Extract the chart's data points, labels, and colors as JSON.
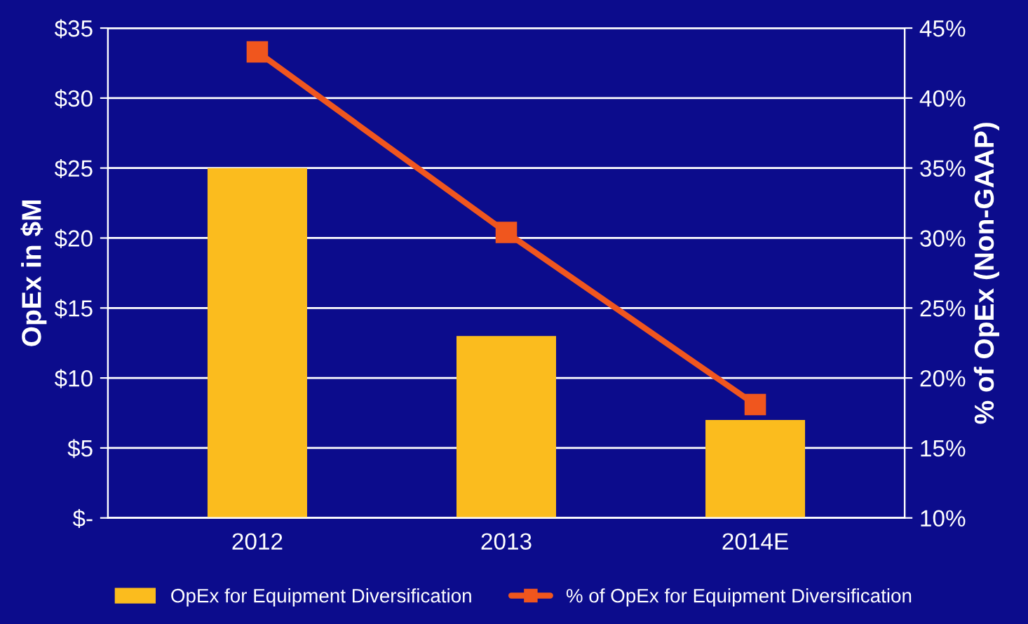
{
  "chart_data": {
    "type": "bar",
    "categories": [
      "2012",
      "2013",
      "2014E"
    ],
    "series": [
      {
        "name": "OpEx for Equipment Diversification",
        "color": "#fbbc1e",
        "values": [
          25,
          13,
          7
        ]
      },
      {
        "name": "% of OpEx for Equipment Diversification",
        "type": "line",
        "axis": "y2",
        "color": "#f0561e",
        "marker": "square",
        "values": [
          43.3,
          30.4,
          18.1
        ]
      }
    ],
    "ylabel": "OpEx in $M",
    "y2label": "% of OpEx (Non-GAAP)",
    "ylim": [
      0,
      35
    ],
    "yticks": [
      {
        "value": 0,
        "label": "$-"
      },
      {
        "value": 5,
        "label": "$5"
      },
      {
        "value": 10,
        "label": "$10"
      },
      {
        "value": 15,
        "label": "$15"
      },
      {
        "value": 20,
        "label": "$20"
      },
      {
        "value": 25,
        "label": "$25"
      },
      {
        "value": 30,
        "label": "$30"
      },
      {
        "value": 35,
        "label": "$35"
      }
    ],
    "y2lim": [
      10,
      45
    ],
    "y2ticks": [
      {
        "value": 10,
        "label": "10%"
      },
      {
        "value": 15,
        "label": "15%"
      },
      {
        "value": 20,
        "label": "20%"
      },
      {
        "value": 25,
        "label": "25%"
      },
      {
        "value": 30,
        "label": "30%"
      },
      {
        "value": 35,
        "label": "35%"
      },
      {
        "value": 40,
        "label": "40%"
      },
      {
        "value": 45,
        "label": "45%"
      }
    ],
    "grid": "y",
    "legend": "bottom"
  }
}
